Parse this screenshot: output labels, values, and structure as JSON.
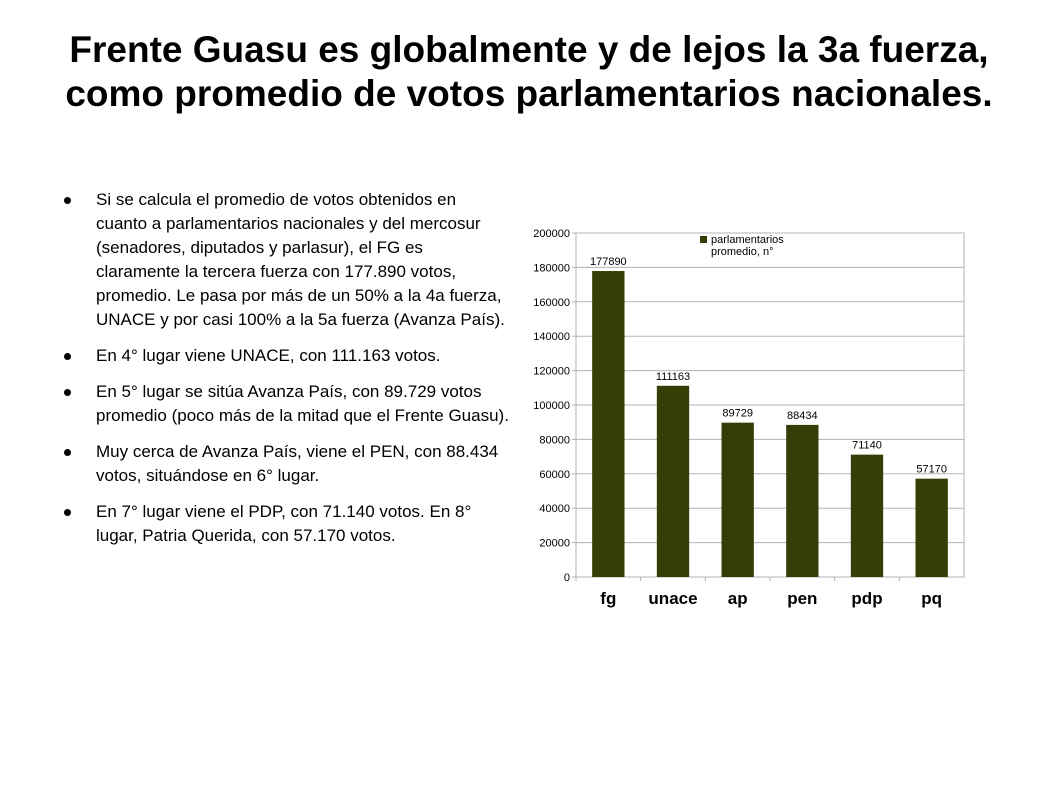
{
  "slide": {
    "title": "Frente Guasu es globalmente y de lejos la 3a fuerza, como promedio de votos parlamentarios nacionales."
  },
  "bullets": [
    "Si se calcula el promedio de votos obtenidos en cuanto a parlamentarios nacionales y del mercosur (senadores, diputados y parlasur), el FG es claramente la tercera fuerza con 177.890 votos, promedio. Le pasa por más de un 50% a la 4a fuerza, UNACE y por casi 100% a la 5a fuerza (Avanza País).",
    "En 4° lugar viene UNACE, con 111.163 votos.",
    "En 5° lugar se sitúa Avanza País, con 89.729 votos promedio (poco más de la mitad que el Frente Guasu).",
    "Muy cerca de Avanza País, viene el PEN, con 88.434 votos, situándose en 6° lugar.",
    "En 7° lugar viene el PDP, con 71.140 votos. En 8° lugar, Patria Querida, con 57.170 votos."
  ],
  "chart_data": {
    "type": "bar",
    "categories": [
      "fg",
      "unace",
      "ap",
      "pen",
      "pdp",
      "pq"
    ],
    "series": [
      {
        "name": "parlamentarios promedio, n°",
        "values": [
          177890,
          111163,
          89729,
          88434,
          71140,
          57170
        ],
        "color": "#333f06"
      }
    ],
    "data_labels": [
      "177890",
      "111163",
      "89729",
      "88434",
      "71140",
      "57170"
    ],
    "ylim": [
      0,
      200000
    ],
    "y_ticks": [
      "0",
      "20000",
      "40000",
      "60000",
      "80000",
      "100000",
      "120000",
      "140000",
      "160000",
      "180000",
      "200000"
    ],
    "grid": true,
    "legend_position": "top-right",
    "legend_lines": [
      "parlamentarios",
      "promedio, n°"
    ]
  }
}
